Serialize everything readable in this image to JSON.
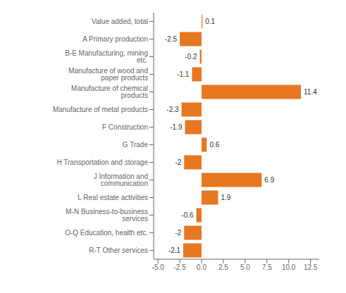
{
  "chart_data": {
    "type": "bar",
    "orientation": "horizontal",
    "categories": [
      "Value added, total",
      "A Primary production",
      "B-E Manufacturing, mining etc.",
      "Manufacture of wood and paper products",
      "Manufacture of chemical products",
      "Manufacture of metal products",
      "F Construction",
      "G Trade",
      "H Transportation and storage",
      "J Information and communication",
      "L Real estate activities",
      "M-N Business-to-business services",
      "O-Q Education, health etc.",
      "R-T Other services"
    ],
    "values": [
      0.1,
      -2.5,
      -0.2,
      -1.1,
      11.4,
      -2.3,
      -1.9,
      0.6,
      -2.0,
      6.9,
      1.9,
      -0.6,
      -2.0,
      -2.1
    ],
    "color": "#E87722",
    "xlim": [
      -5.5,
      13.5
    ],
    "xticks": [
      {
        "value": -5,
        "label": "-5.0"
      },
      -2.5,
      {
        "value": 0,
        "label": "0.0"
      },
      2.5,
      {
        "value": 5,
        "label": "5.0"
      },
      7.5,
      {
        "value": 10,
        "label": "10.0"
      },
      12.5
    ],
    "grid": false,
    "data_labels": true
  }
}
